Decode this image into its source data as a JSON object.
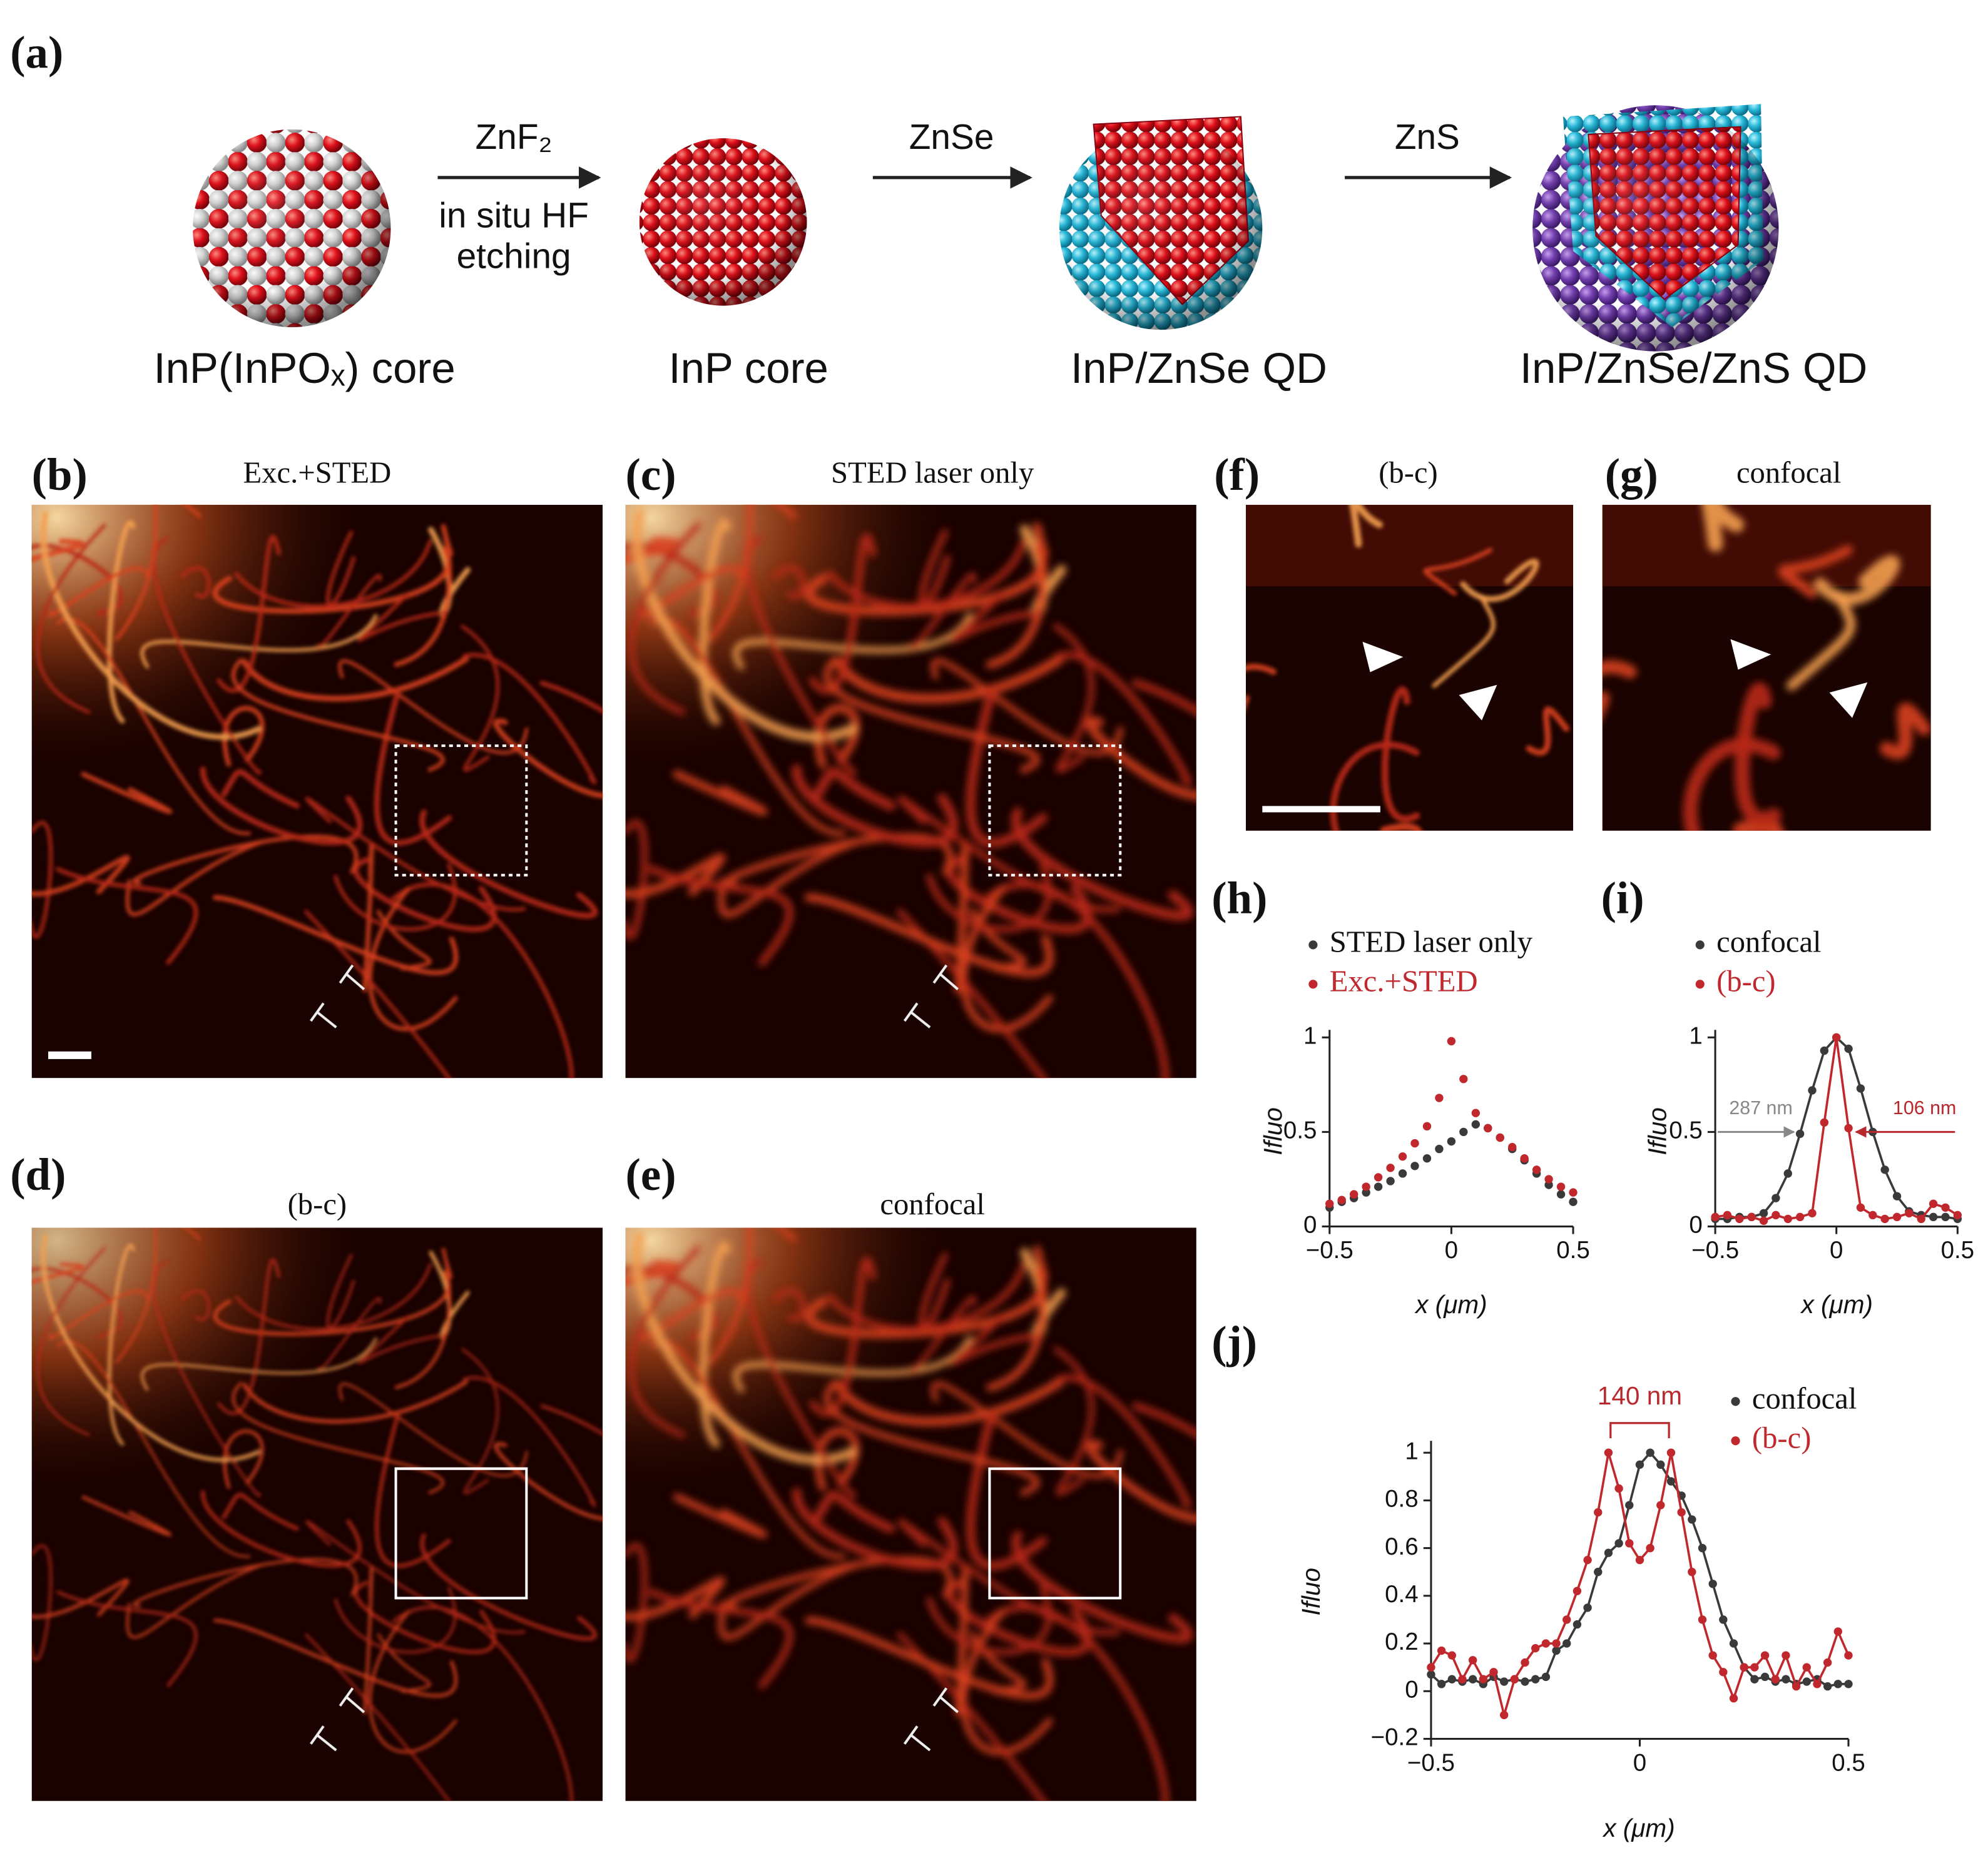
{
  "figure": {
    "a": {
      "label": "(a)",
      "reagents": [
        "ZnF₂",
        "in situ HF",
        "etching",
        "ZnSe",
        "ZnS"
      ],
      "names": [
        "InP(InPOₓ) core",
        "InP core",
        "InP/ZnSe QD",
        "InP/ZnSe/ZnS QD"
      ]
    },
    "images": [
      {
        "label": "(b)",
        "title": "Exc.+STED"
      },
      {
        "label": "(c)",
        "title": "STED laser only"
      },
      {
        "label": "(d)",
        "title": "(b-c)"
      },
      {
        "label": "(e)",
        "title": "confocal"
      },
      {
        "label": "(f)",
        "title": "(b-c)"
      },
      {
        "label": "(g)",
        "title": "confocal"
      }
    ]
  },
  "chart_data": [
    {
      "type": "scatter",
      "label": "(h)",
      "xlabel": "x (μm)",
      "ylabel": "Ifluo",
      "lines": false,
      "x": [
        -0.5,
        -0.45,
        -0.4,
        -0.35,
        -0.3,
        -0.25,
        -0.2,
        -0.15,
        -0.1,
        -0.05,
        0,
        0.05,
        0.1,
        0.15,
        0.2,
        0.25,
        0.3,
        0.35,
        0.4,
        0.45,
        0.5
      ],
      "series": [
        {
          "name": "STED laser only",
          "color": "#3a3a3a",
          "values": [
            0.1,
            0.13,
            0.15,
            0.18,
            0.21,
            0.24,
            0.28,
            0.32,
            0.36,
            0.41,
            0.45,
            0.5,
            0.54,
            0.52,
            0.47,
            0.41,
            0.35,
            0.28,
            0.22,
            0.17,
            0.13
          ]
        },
        {
          "name": "Exc.+STED",
          "color": "#c0282d",
          "values": [
            0.12,
            0.14,
            0.17,
            0.21,
            0.26,
            0.31,
            0.37,
            0.44,
            0.53,
            0.68,
            0.98,
            0.78,
            0.6,
            0.52,
            0.47,
            0.42,
            0.36,
            0.3,
            0.25,
            0.21,
            0.18
          ]
        }
      ],
      "xlim": [
        -0.5,
        0.5
      ],
      "ylim": [
        0,
        1.04
      ],
      "xticks": [
        {
          "value": -0.5,
          "label": "−0.5"
        },
        0,
        0.5
      ],
      "yticks": [
        0,
        0.5,
        1
      ]
    },
    {
      "type": "scatter",
      "label": "(i)",
      "xlabel": "x (μm)",
      "ylabel": "Ifluo",
      "lines": true,
      "annotations": [
        "287 nm",
        "106 nm"
      ],
      "x": [
        -0.5,
        -0.45,
        -0.4,
        -0.35,
        -0.3,
        -0.25,
        -0.2,
        -0.15,
        -0.1,
        -0.05,
        0,
        0.05,
        0.1,
        0.15,
        0.2,
        0.25,
        0.3,
        0.35,
        0.4,
        0.45,
        0.5
      ],
      "series": [
        {
          "name": "confocal",
          "color": "#3a3a3a",
          "values": [
            0.04,
            0.04,
            0.05,
            0.05,
            0.07,
            0.15,
            0.28,
            0.49,
            0.72,
            0.93,
            1.0,
            0.94,
            0.73,
            0.5,
            0.3,
            0.16,
            0.08,
            0.06,
            0.05,
            0.05,
            0.04
          ]
        },
        {
          "name": "(b-c)",
          "color": "#c0282d",
          "values": [
            0.05,
            0.06,
            0.04,
            0.05,
            0.03,
            0.06,
            0.04,
            0.05,
            0.07,
            0.55,
            1.0,
            0.52,
            0.1,
            0.06,
            0.04,
            0.05,
            0.07,
            0.04,
            0.12,
            0.1,
            0.06
          ]
        }
      ],
      "xlim": [
        -0.5,
        0.5
      ],
      "ylim": [
        0,
        1.04
      ],
      "xticks": [
        {
          "value": -0.5,
          "label": "−0.5"
        },
        0,
        0.5
      ],
      "yticks": [
        0,
        0.5,
        1
      ]
    },
    {
      "type": "scatter",
      "label": "(j)",
      "xlabel": "x (μm)",
      "ylabel": "Ifluo",
      "lines": true,
      "annotations": [
        "140 nm"
      ],
      "x": [
        -0.5,
        -0.475,
        -0.45,
        -0.425,
        -0.4,
        -0.375,
        -0.35,
        -0.325,
        -0.3,
        -0.275,
        -0.25,
        -0.225,
        -0.2,
        -0.175,
        -0.15,
        -0.125,
        -0.1,
        -0.075,
        -0.05,
        -0.025,
        0,
        0.025,
        0.05,
        0.075,
        0.1,
        0.125,
        0.15,
        0.175,
        0.2,
        0.225,
        0.25,
        0.275,
        0.3,
        0.325,
        0.35,
        0.375,
        0.4,
        0.425,
        0.45,
        0.475,
        0.5
      ],
      "series": [
        {
          "name": "confocal",
          "color": "#3a3a3a",
          "values": [
            0.07,
            0.03,
            0.05,
            0.04,
            0.05,
            0.03,
            0.06,
            0.04,
            0.05,
            0.04,
            0.05,
            0.06,
            0.17,
            0.2,
            0.28,
            0.35,
            0.5,
            0.58,
            0.62,
            0.78,
            0.95,
            1.0,
            0.95,
            0.88,
            0.82,
            0.72,
            0.6,
            0.45,
            0.3,
            0.2,
            0.1,
            0.05,
            0.06,
            0.04,
            0.05,
            0.03,
            0.04,
            0.05,
            0.02,
            0.03,
            0.03
          ]
        },
        {
          "name": "(b-c)",
          "color": "#c0282d",
          "values": [
            0.1,
            0.17,
            0.15,
            0.05,
            0.13,
            0.05,
            0.08,
            -0.1,
            0.05,
            0.12,
            0.18,
            0.2,
            0.2,
            0.3,
            0.42,
            0.55,
            0.75,
            1.0,
            0.85,
            0.62,
            0.55,
            0.6,
            0.78,
            1.0,
            0.75,
            0.5,
            0.3,
            0.15,
            0.08,
            -0.03,
            0.1,
            0.1,
            0.15,
            0.05,
            0.15,
            0.02,
            0.1,
            0.03,
            0.12,
            0.25,
            0.15
          ]
        }
      ],
      "xlim": [
        -0.5,
        0.5
      ],
      "ylim": [
        -0.2,
        1.05
      ],
      "xticks": [
        {
          "value": -0.5,
          "label": "−0.5"
        },
        0,
        0.5
      ],
      "yticks": [
        {
          "value": -0.2,
          "label": "−0.2"
        },
        0,
        0.2,
        0.4,
        0.6,
        0.8,
        1
      ]
    }
  ]
}
